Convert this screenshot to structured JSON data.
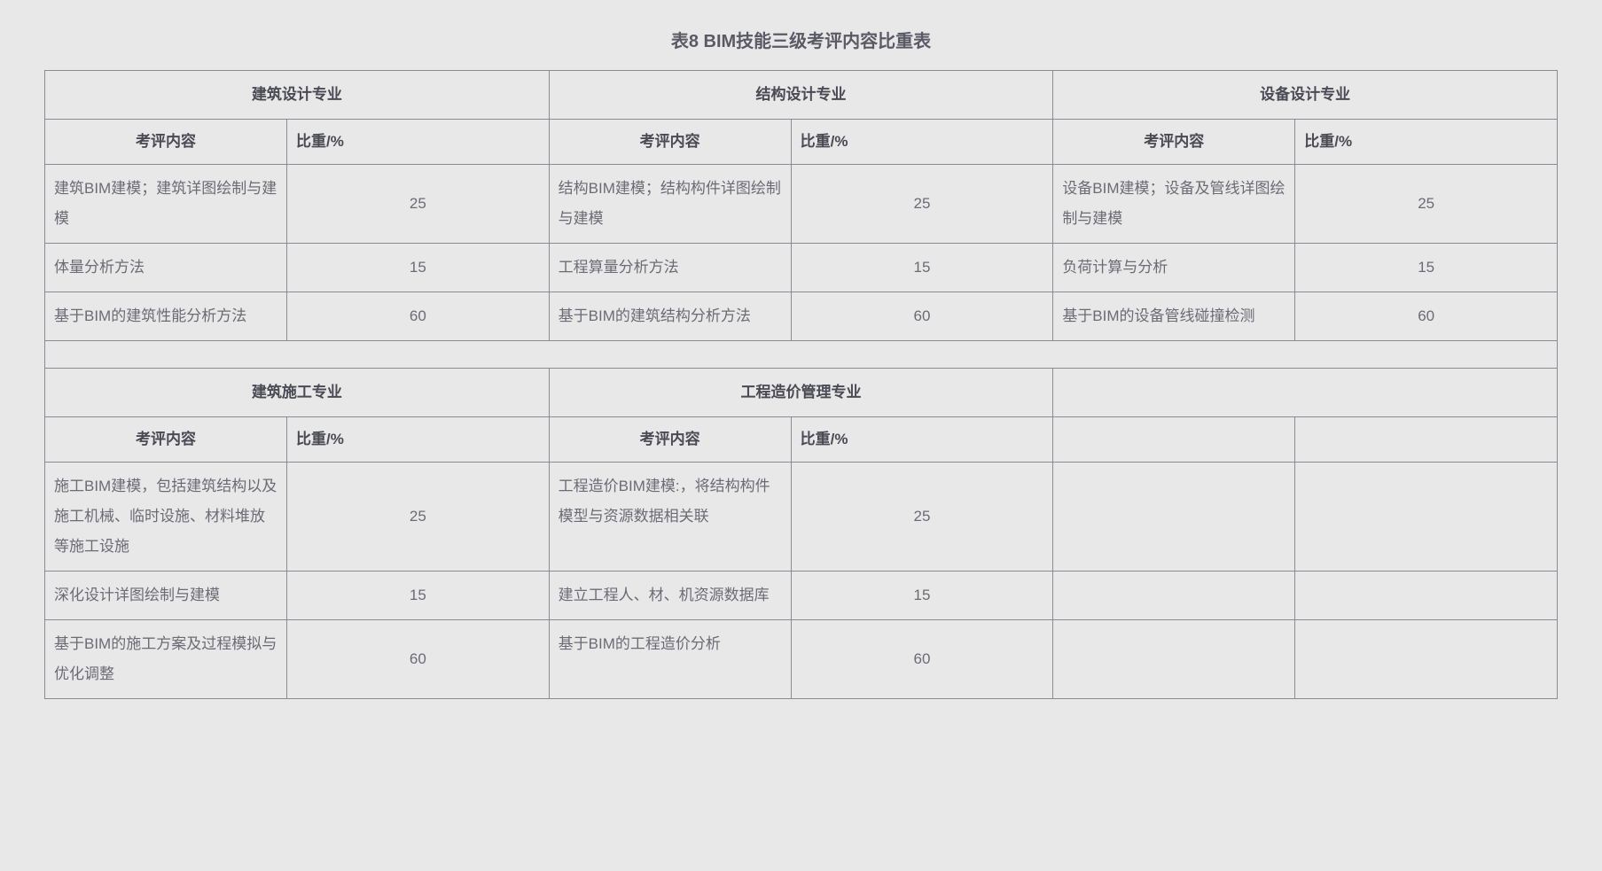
{
  "title": "表8  BIM技能三级考评内容比重表",
  "columns": {
    "content_label": "考评内容",
    "weight_label": "比重/%"
  },
  "top_majors": [
    {
      "name": "建筑设计专业",
      "rows": [
        {
          "content": "建筑BIM建模；建筑详图绘制与建模",
          "weight": "25"
        },
        {
          "content": "体量分析方法",
          "weight": "15"
        },
        {
          "content": "基于BIM的建筑性能分析方法",
          "weight": "60"
        }
      ]
    },
    {
      "name": "结构设计专业",
      "rows": [
        {
          "content": "结构BIM建模；结构构件详图绘制与建模",
          "weight": "25"
        },
        {
          "content": "工程算量分析方法",
          "weight": "15"
        },
        {
          "content": "基于BIM的建筑结构分析方法",
          "weight": "60"
        }
      ]
    },
    {
      "name": "设备设计专业",
      "rows": [
        {
          "content": "设备BIM建模；设备及管线详图绘制与建模",
          "weight": "25"
        },
        {
          "content": "负荷计算与分析",
          "weight": "15"
        },
        {
          "content": "基于BIM的设备管线碰撞检测",
          "weight": "60"
        }
      ]
    }
  ],
  "bottom_majors": [
    {
      "name": "建筑施工专业",
      "rows": [
        {
          "content": "施工BIM建模，包括建筑结构以及施工机械、临时设施、材料堆放等施工设施",
          "weight": "25"
        },
        {
          "content": "深化设计详图绘制与建模",
          "weight": "15"
        },
        {
          "content": "基于BIM的施工方案及过程模拟与优化调整",
          "weight": "60"
        }
      ]
    },
    {
      "name": "工程造价管理专业",
      "rows": [
        {
          "content": "工程造价BIM建模:，将结构构件模型与资源数据相关联",
          "weight": "25"
        },
        {
          "content": "建立工程人、材、机资源数据库",
          "weight": "15"
        },
        {
          "content": "基于BIM的工程造价分析",
          "weight": "60"
        }
      ]
    },
    {
      "name": "",
      "rows": [
        {
          "content": "",
          "weight": ""
        },
        {
          "content": "",
          "weight": ""
        },
        {
          "content": "",
          "weight": ""
        }
      ]
    }
  ],
  "styling": {
    "background_color": "#e8e8e9",
    "border_color": "#8a8a95",
    "text_color": "#6b6b75",
    "header_text_color": "#4a4a55",
    "title_fontsize": 20,
    "cell_fontsize": 17
  }
}
